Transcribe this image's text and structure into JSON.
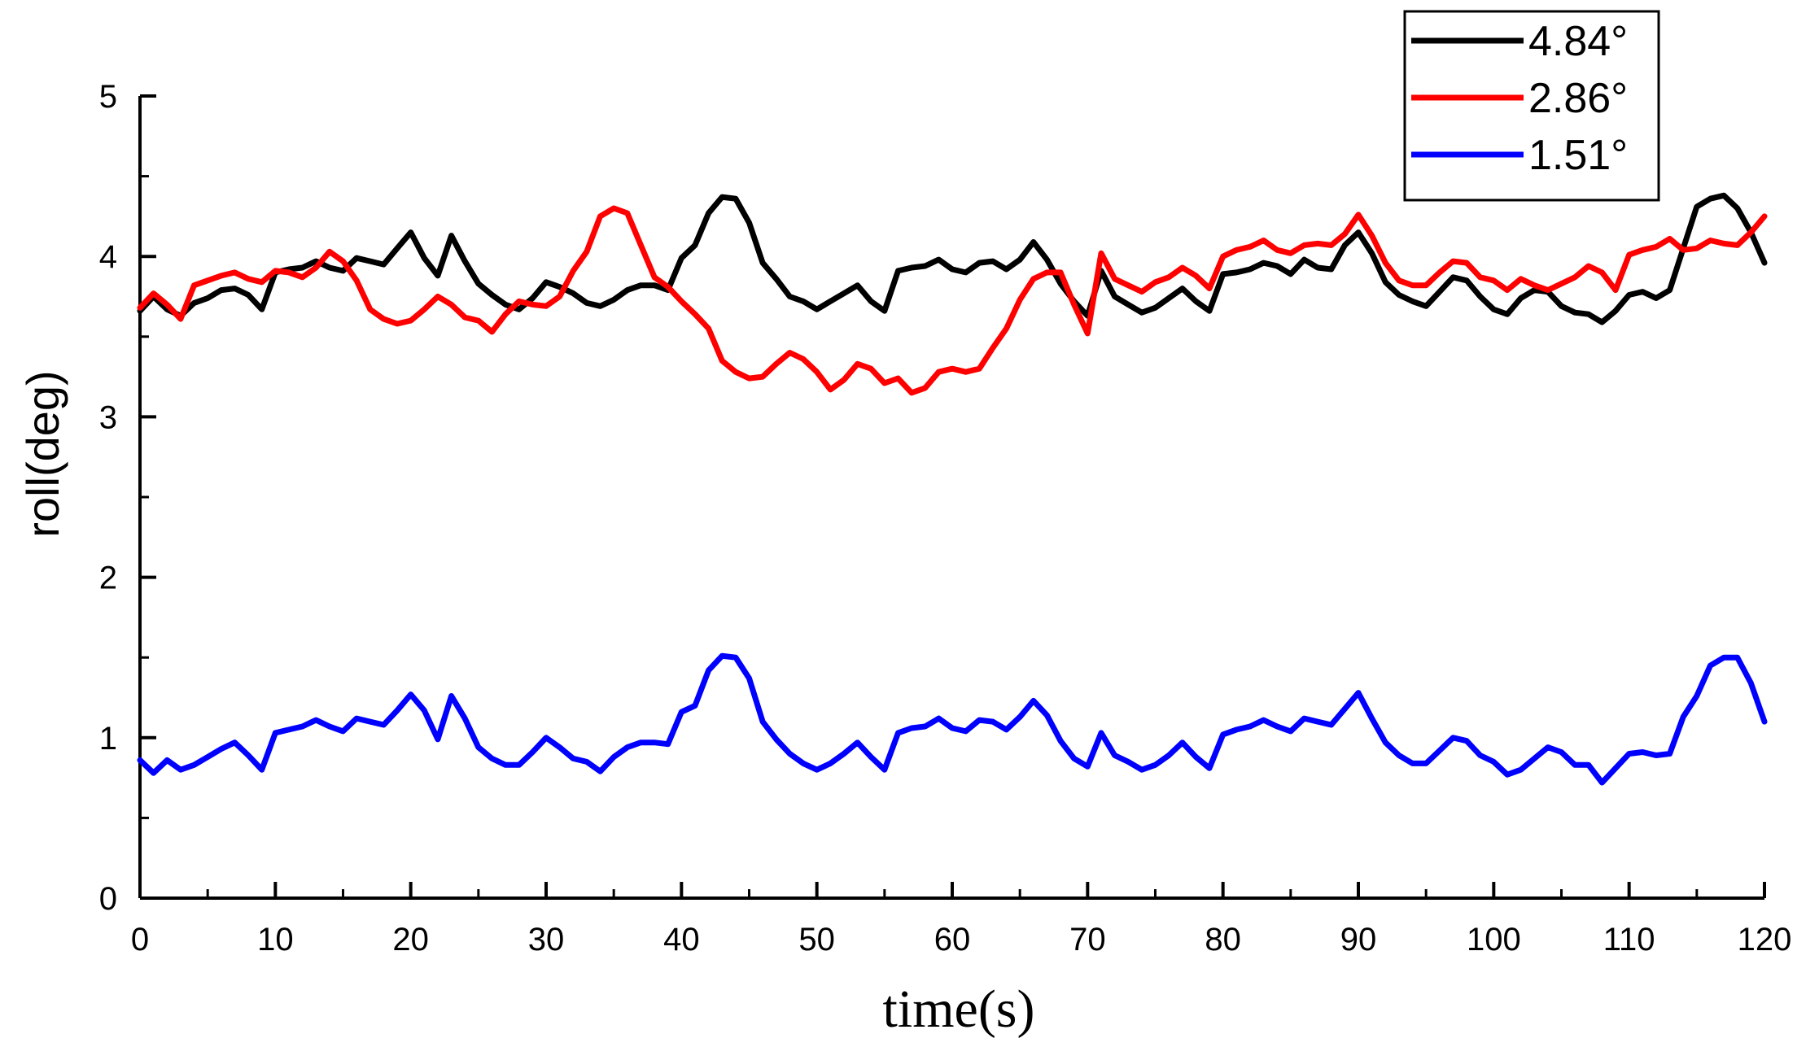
{
  "chart_data": {
    "type": "line",
    "title": "",
    "xlabel": "time(s)",
    "ylabel": "roll(deg)",
    "xlim": [
      0,
      120
    ],
    "ylim": [
      0,
      5
    ],
    "xticks": [
      0,
      10,
      20,
      30,
      40,
      50,
      60,
      70,
      80,
      90,
      100,
      110,
      120
    ],
    "yticks": [
      0,
      1,
      2,
      3,
      4,
      5
    ],
    "legend_position": "top-right",
    "series": [
      {
        "name": "4.84°",
        "color": "#000000",
        "x": [
          0,
          1,
          2,
          3,
          4,
          5,
          6,
          7,
          8,
          9,
          10,
          11,
          12,
          13,
          14,
          15,
          16,
          17,
          18,
          19,
          20,
          21,
          22,
          23,
          24,
          25,
          26,
          27,
          28,
          29,
          30,
          31,
          32,
          33,
          34,
          35,
          36,
          37,
          38,
          39,
          40,
          41,
          42,
          43,
          44,
          45,
          46,
          47,
          48,
          49,
          50,
          51,
          52,
          53,
          54,
          55,
          56,
          57,
          58,
          59,
          60,
          61,
          62,
          63,
          64,
          65,
          66,
          67,
          68,
          69,
          70,
          71,
          72,
          73,
          74,
          75,
          76,
          77,
          78,
          79,
          80,
          81,
          82,
          83,
          84,
          85,
          86,
          87,
          88,
          89,
          90,
          91,
          92,
          93,
          94,
          95,
          96,
          97,
          98,
          99,
          100,
          101,
          102,
          103,
          104,
          105,
          106,
          107,
          108,
          109,
          110,
          111,
          112,
          113,
          114,
          115,
          116,
          117,
          118,
          119,
          120
        ],
        "values": [
          3.66,
          3.75,
          3.67,
          3.63,
          3.71,
          3.74,
          3.79,
          3.8,
          3.76,
          3.67,
          3.9,
          3.92,
          3.93,
          3.97,
          3.93,
          3.91,
          3.99,
          3.97,
          3.95,
          4.05,
          4.15,
          3.99,
          3.88,
          4.13,
          3.97,
          3.83,
          3.76,
          3.7,
          3.67,
          3.74,
          3.84,
          3.81,
          3.77,
          3.71,
          3.69,
          3.73,
          3.79,
          3.82,
          3.82,
          3.79,
          3.99,
          4.07,
          4.27,
          4.37,
          4.36,
          4.21,
          3.96,
          3.86,
          3.75,
          3.72,
          3.67,
          3.72,
          3.77,
          3.82,
          3.72,
          3.66,
          3.91,
          3.93,
          3.94,
          3.98,
          3.92,
          3.9,
          3.96,
          3.97,
          3.92,
          3.98,
          4.09,
          3.98,
          3.83,
          3.72,
          3.63,
          3.91,
          3.75,
          3.7,
          3.65,
          3.68,
          3.74,
          3.8,
          3.72,
          3.66,
          3.89,
          3.9,
          3.92,
          3.96,
          3.94,
          3.89,
          3.98,
          3.93,
          3.92,
          4.07,
          4.15,
          4.02,
          3.84,
          3.76,
          3.72,
          3.69,
          3.78,
          3.87,
          3.85,
          3.75,
          3.67,
          3.64,
          3.74,
          3.79,
          3.78,
          3.69,
          3.65,
          3.64,
          3.59,
          3.66,
          3.76,
          3.78,
          3.74,
          3.79,
          4.05,
          4.31,
          4.36,
          4.38,
          4.3,
          4.15,
          3.96
        ]
      },
      {
        "name": "2.86°",
        "color": "#ff0000",
        "x": [
          0,
          1,
          2,
          3,
          4,
          5,
          6,
          7,
          8,
          9,
          10,
          11,
          12,
          13,
          14,
          15,
          16,
          17,
          18,
          19,
          20,
          21,
          22,
          23,
          24,
          25,
          26,
          27,
          28,
          29,
          30,
          31,
          32,
          33,
          34,
          35,
          36,
          37,
          38,
          39,
          40,
          41,
          42,
          43,
          44,
          45,
          46,
          47,
          48,
          49,
          50,
          51,
          52,
          53,
          54,
          55,
          56,
          57,
          58,
          59,
          60,
          61,
          62,
          63,
          64,
          65,
          66,
          67,
          68,
          69,
          70,
          71,
          72,
          73,
          74,
          75,
          76,
          77,
          78,
          79,
          80,
          81,
          82,
          83,
          84,
          85,
          86,
          87,
          88,
          89,
          90,
          91,
          92,
          93,
          94,
          95,
          96,
          97,
          98,
          99,
          100,
          101,
          102,
          103,
          104,
          105,
          106,
          107,
          108,
          109,
          110,
          111,
          112,
          113,
          114,
          115,
          116,
          117,
          118,
          119,
          120
        ],
        "values": [
          3.68,
          3.77,
          3.7,
          3.61,
          3.82,
          3.85,
          3.88,
          3.9,
          3.86,
          3.84,
          3.91,
          3.9,
          3.87,
          3.93,
          4.03,
          3.97,
          3.85,
          3.67,
          3.61,
          3.58,
          3.6,
          3.67,
          3.75,
          3.7,
          3.62,
          3.6,
          3.53,
          3.64,
          3.72,
          3.7,
          3.69,
          3.75,
          3.91,
          4.03,
          4.25,
          4.3,
          4.27,
          4.07,
          3.87,
          3.81,
          3.72,
          3.64,
          3.55,
          3.35,
          3.28,
          3.24,
          3.25,
          3.33,
          3.4,
          3.36,
          3.28,
          3.17,
          3.23,
          3.33,
          3.3,
          3.21,
          3.24,
          3.15,
          3.18,
          3.28,
          3.3,
          3.28,
          3.3,
          3.43,
          3.55,
          3.73,
          3.86,
          3.9,
          3.9,
          3.7,
          3.52,
          4.02,
          3.86,
          3.82,
          3.78,
          3.84,
          3.87,
          3.93,
          3.88,
          3.8,
          4.0,
          4.04,
          4.06,
          4.1,
          4.04,
          4.02,
          4.07,
          4.08,
          4.07,
          4.14,
          4.26,
          4.13,
          3.96,
          3.85,
          3.82,
          3.82,
          3.9,
          3.97,
          3.96,
          3.87,
          3.85,
          3.79,
          3.86,
          3.82,
          3.79,
          3.83,
          3.87,
          3.94,
          3.9,
          3.79,
          4.01,
          4.04,
          4.06,
          4.11,
          4.04,
          4.05,
          4.1,
          4.08,
          4.07,
          4.15,
          4.25
        ]
      },
      {
        "name": "1.51°",
        "color": "#0000ff",
        "x": [
          0,
          1,
          2,
          3,
          4,
          5,
          6,
          7,
          8,
          9,
          10,
          11,
          12,
          13,
          14,
          15,
          16,
          17,
          18,
          19,
          20,
          21,
          22,
          23,
          24,
          25,
          26,
          27,
          28,
          29,
          30,
          31,
          32,
          33,
          34,
          35,
          36,
          37,
          38,
          39,
          40,
          41,
          42,
          43,
          44,
          45,
          46,
          47,
          48,
          49,
          50,
          51,
          52,
          53,
          54,
          55,
          56,
          57,
          58,
          59,
          60,
          61,
          62,
          63,
          64,
          65,
          66,
          67,
          68,
          69,
          70,
          71,
          72,
          73,
          74,
          75,
          76,
          77,
          78,
          79,
          80,
          81,
          82,
          83,
          84,
          85,
          86,
          87,
          88,
          89,
          90,
          91,
          92,
          93,
          94,
          95,
          96,
          97,
          98,
          99,
          100,
          101,
          102,
          103,
          104,
          105,
          106,
          107,
          108,
          109,
          110,
          111,
          112,
          113,
          114,
          115,
          116,
          117,
          118,
          119,
          120
        ],
        "values": [
          0.86,
          0.78,
          0.86,
          0.8,
          0.83,
          0.88,
          0.93,
          0.97,
          0.89,
          0.8,
          1.03,
          1.05,
          1.07,
          1.11,
          1.07,
          1.04,
          1.12,
          1.1,
          1.08,
          1.17,
          1.27,
          1.17,
          0.99,
          1.26,
          1.12,
          0.94,
          0.87,
          0.83,
          0.83,
          0.91,
          1.0,
          0.94,
          0.87,
          0.85,
          0.79,
          0.88,
          0.94,
          0.97,
          0.97,
          0.96,
          1.16,
          1.2,
          1.42,
          1.51,
          1.5,
          1.37,
          1.1,
          0.99,
          0.9,
          0.84,
          0.8,
          0.84,
          0.9,
          0.97,
          0.88,
          0.8,
          1.03,
          1.06,
          1.07,
          1.12,
          1.06,
          1.04,
          1.11,
          1.1,
          1.05,
          1.13,
          1.23,
          1.14,
          0.98,
          0.87,
          0.82,
          1.03,
          0.89,
          0.85,
          0.8,
          0.83,
          0.89,
          0.97,
          0.88,
          0.81,
          1.02,
          1.05,
          1.07,
          1.11,
          1.07,
          1.04,
          1.12,
          1.1,
          1.08,
          1.18,
          1.28,
          1.12,
          0.97,
          0.89,
          0.84,
          0.84,
          0.92,
          1.0,
          0.98,
          0.89,
          0.85,
          0.77,
          0.8,
          0.87,
          0.94,
          0.91,
          0.83,
          0.83,
          0.72,
          0.81,
          0.9,
          0.91,
          0.89,
          0.9,
          1.13,
          1.26,
          1.45,
          1.5,
          1.5,
          1.34,
          1.1
        ]
      }
    ]
  }
}
